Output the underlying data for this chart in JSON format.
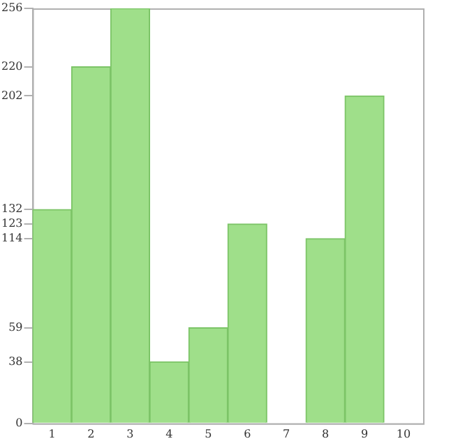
{
  "chart_data": {
    "type": "bar",
    "categories": [
      "1",
      "2",
      "3",
      "4",
      "5",
      "6",
      "7",
      "8",
      "9",
      "10"
    ],
    "values": [
      132,
      220,
      256,
      38,
      59,
      123,
      0,
      114,
      202,
      0
    ],
    "color": "#9fdf8a",
    "ylim": [
      0,
      256
    ],
    "yticks": [
      0,
      38,
      59,
      114,
      123,
      132,
      202,
      220,
      256
    ],
    "grid": false,
    "legend": false
  }
}
